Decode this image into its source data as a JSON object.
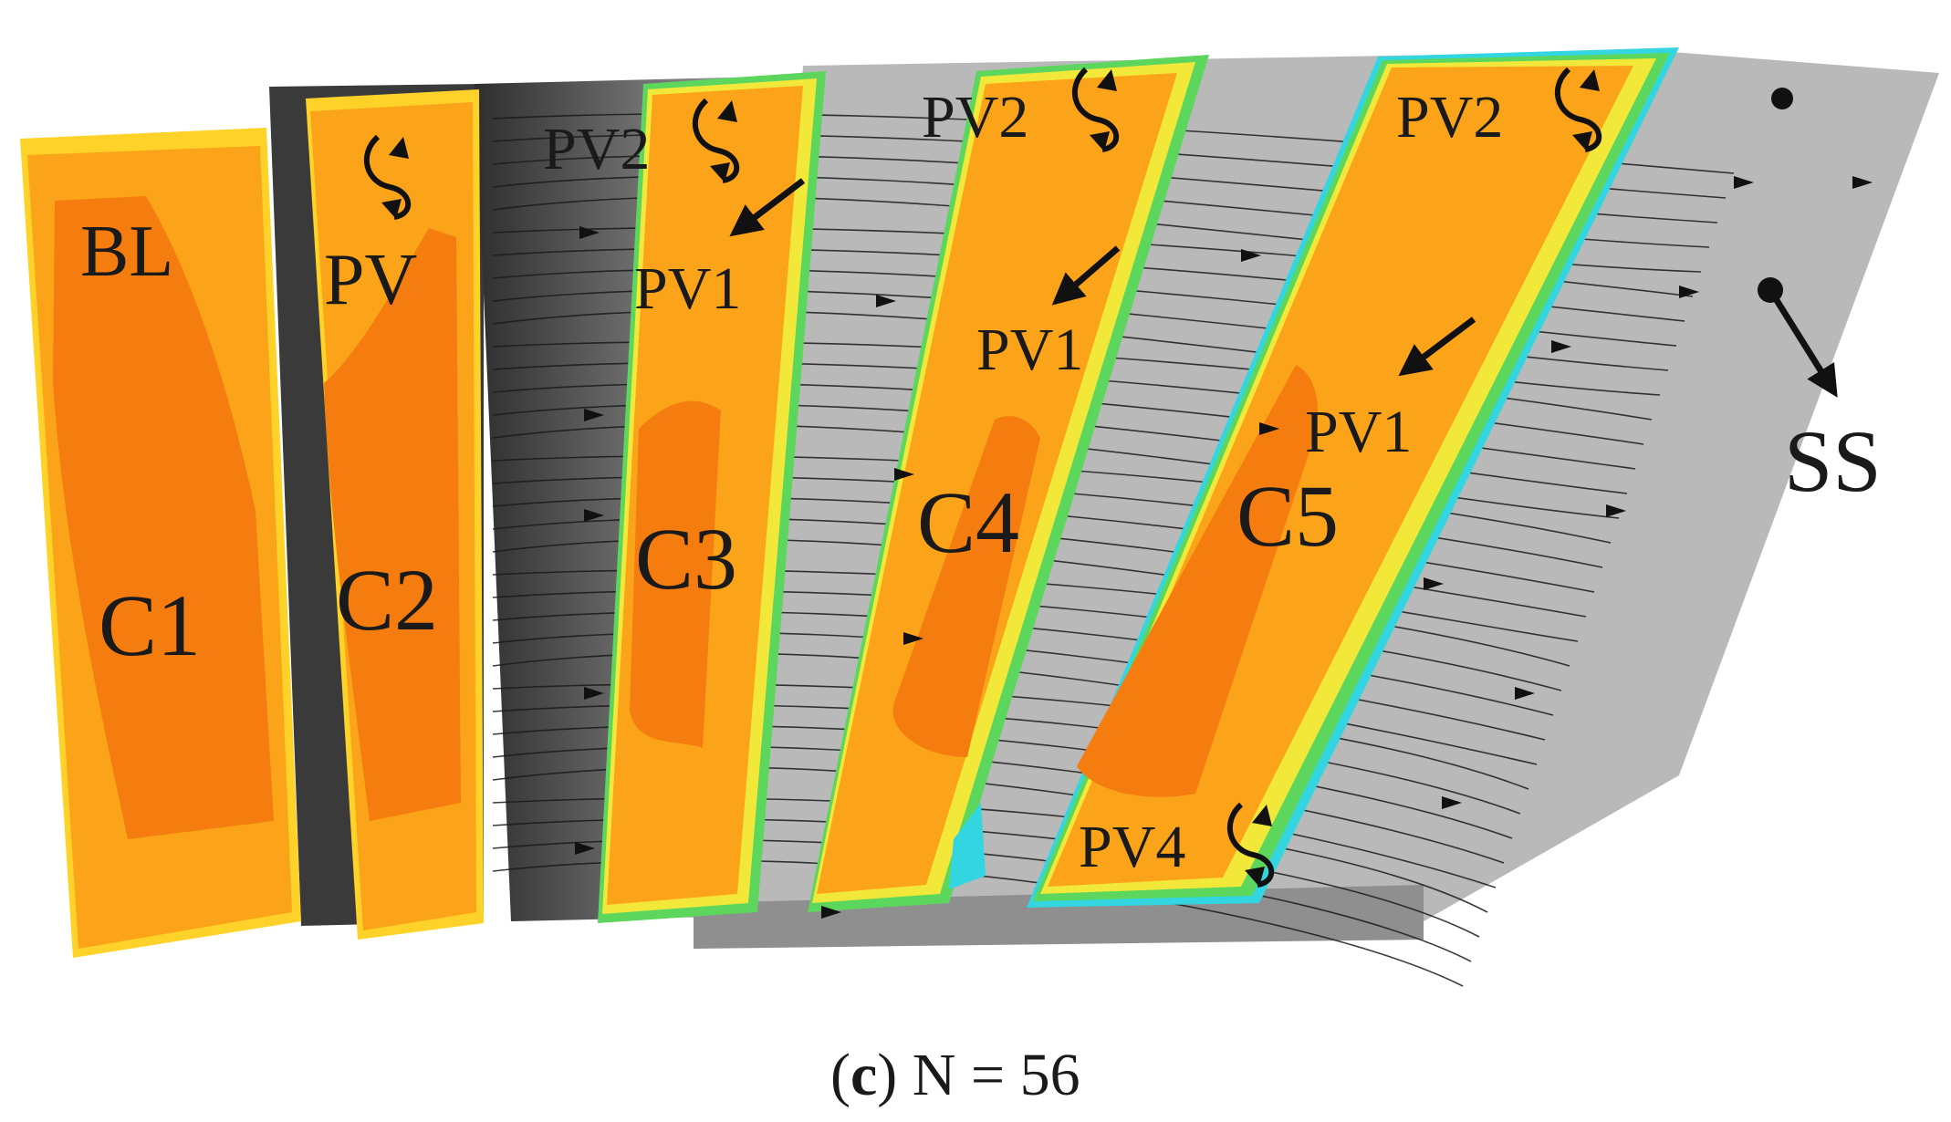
{
  "figure": {
    "caption": {
      "letter": "c",
      "text": "N = 56"
    },
    "labels": {
      "bl": "BL",
      "pv": "PV",
      "c1": "C1",
      "c2": "C2",
      "c3": "C3",
      "c4": "C4",
      "c5": "C5",
      "pv2_c3": "PV2",
      "pv1_c3": "PV1",
      "pv2_c4": "PV2",
      "pv1_c4": "PV1",
      "pv2_c5": "PV2",
      "pv1_c5": "PV1",
      "pv4": "PV4",
      "ss": "SS"
    },
    "colors": {
      "contour_dark_orange": "#f57d10",
      "contour_orange": "#fba41a",
      "contour_light_orange": "#ffbb22",
      "contour_yellow": "#f2e83a",
      "contour_green": "#5cd65c",
      "contour_cyan": "#33d6e0",
      "surface_gray": "#b8b8b8",
      "surface_dark": "#3a3a3a",
      "streamline": "#1a1a1a"
    }
  }
}
